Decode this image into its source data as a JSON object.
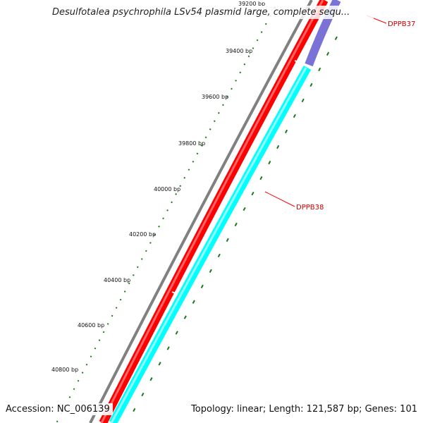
{
  "title": "Desulfotalea psychrophila LSv54 plasmid large, complete sequ...",
  "accession": "Accession: NC_006139",
  "summary": "Topology: linear; Length: 121,587 bp; Genes: 101",
  "scale": {
    "unit": "bp",
    "labels": [
      "39200 bp",
      "39400 bp",
      "39600 bp",
      "39800 bp",
      "40000 bp",
      "40200 bp",
      "40400 bp",
      "40600 bp",
      "40800 bp"
    ]
  },
  "genes": [
    {
      "name": "DPPB37",
      "strand": "reverse",
      "color": "#7b72d8"
    },
    {
      "name": "DPPB38",
      "strand": "reverse",
      "color": "#00ffff"
    }
  ],
  "colors": {
    "backbone": "#808080",
    "forward_track": "#ff0000",
    "reverse_track": "#00ffff",
    "tick": "#1a7a1a",
    "label_line": "#ff0000"
  }
}
